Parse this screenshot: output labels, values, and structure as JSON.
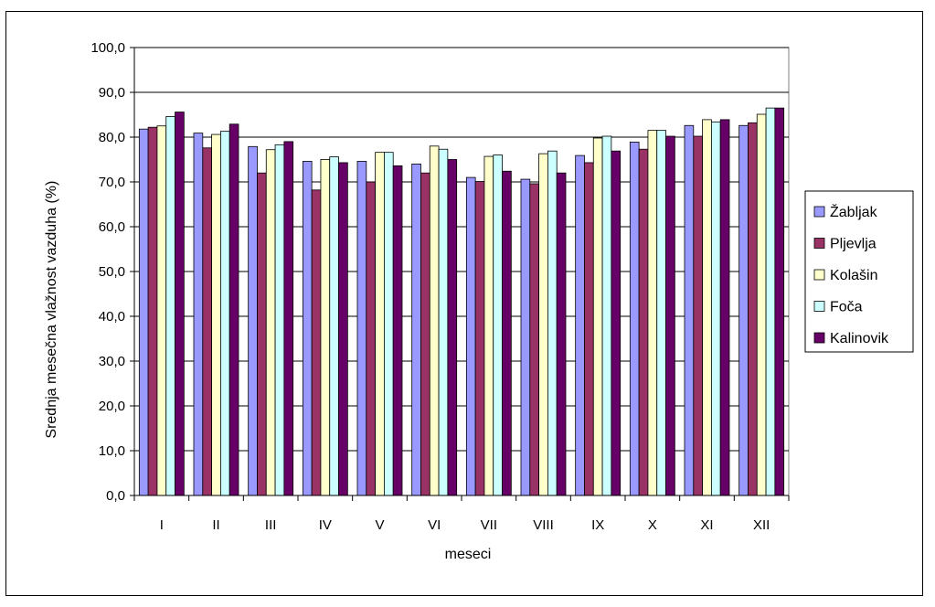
{
  "chart_data": {
    "type": "bar",
    "title": "",
    "xlabel": "meseci",
    "ylabel": "Srednja mesečna vlažnost vazduha (%)",
    "ylim": [
      0,
      100
    ],
    "yticks": [
      "0,0",
      "10,0",
      "20,0",
      "30,0",
      "40,0",
      "50,0",
      "60,0",
      "70,0",
      "80,0",
      "90,0",
      "100,0"
    ],
    "categories": [
      "I",
      "II",
      "III",
      "IV",
      "V",
      "VI",
      "VII",
      "VIII",
      "IX",
      "X",
      "XI",
      "XII"
    ],
    "grid": "major horizontal",
    "legend_position": "right",
    "series": [
      {
        "name": "Žabljak",
        "color": "#9999ff",
        "values": [
          81.8,
          80.9,
          77.9,
          74.6,
          74.6,
          74.0,
          71.0,
          70.6,
          75.9,
          78.9,
          82.6,
          82.6
        ]
      },
      {
        "name": "Pljevlja",
        "color": "#993366",
        "values": [
          82.2,
          77.6,
          72.0,
          68.2,
          70.0,
          72.0,
          70.1,
          69.6,
          74.3,
          77.3,
          80.2,
          83.2
        ]
      },
      {
        "name": "Kolašin",
        "color": "#ffffcc",
        "values": [
          82.5,
          80.6,
          77.2,
          75.0,
          76.6,
          78.0,
          75.7,
          76.3,
          79.8,
          81.5,
          83.9,
          85.1
        ]
      },
      {
        "name": "Foča",
        "color": "#ccffff",
        "values": [
          84.6,
          81.3,
          78.3,
          75.6,
          76.6,
          77.3,
          76.0,
          76.9,
          80.2,
          81.5,
          83.4,
          86.5
        ]
      },
      {
        "name": "Kalinovik",
        "color": "#660066",
        "values": [
          85.6,
          82.9,
          79.0,
          74.3,
          73.6,
          75.0,
          72.4,
          72.0,
          76.9,
          80.2,
          83.9,
          86.5
        ]
      }
    ]
  }
}
